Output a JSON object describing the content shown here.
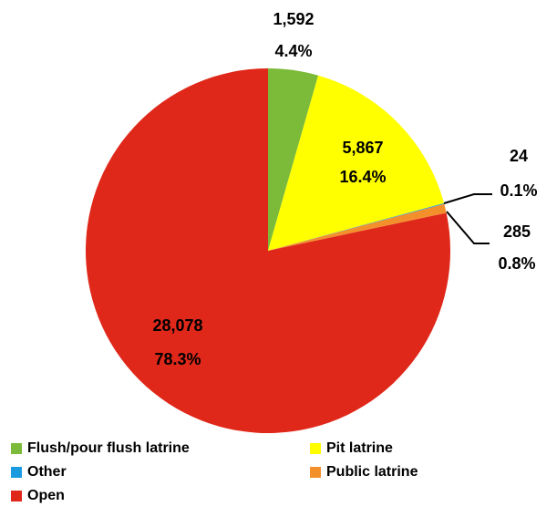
{
  "chart_data": {
    "type": "pie",
    "categories": [
      "Flush/pour flush latrine",
      "Pit latrine",
      "Other",
      "Public latrine",
      "Open"
    ],
    "values": [
      1592,
      5867,
      24,
      285,
      28078
    ],
    "value_labels": [
      "1,592",
      "5,867",
      "24",
      "285",
      "28,078"
    ],
    "percent_labels": [
      "4.4%",
      "16.4%",
      "0.1%",
      "0.8%",
      "78.3%"
    ],
    "colors": [
      "#7cbb3a",
      "#ffff00",
      "#1a9be0",
      "#f4902c",
      "#e0281a"
    ],
    "legend": "bottom"
  }
}
